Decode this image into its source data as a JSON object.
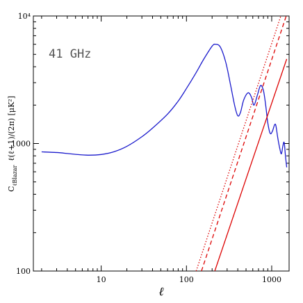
{
  "chart_data": {
    "type": "line",
    "xscale": "log",
    "yscale": "log",
    "xlim": [
      1.6,
      1600
    ],
    "ylim": [
      100,
      10000
    ],
    "x_ticks": [
      {
        "value": 10,
        "label": "10"
      },
      {
        "value": 100,
        "label": "100"
      },
      {
        "value": 1000,
        "label": "1000"
      }
    ],
    "y_ticks": [
      {
        "value": 100,
        "label": "100"
      },
      {
        "value": 1000,
        "label": "1000"
      },
      {
        "value": 10000,
        "label": "10⁴"
      }
    ],
    "xlabel": "ℓ",
    "ylabel": "C_{ℓBlazar}  ℓ(ℓ+1)/(2π) [μK²]",
    "ylabel_main": "C",
    "ylabel_sub": "ℓBlazar",
    "ylabel_rest": "ℓ(ℓ+1)/(2π)  [μK²]",
    "annotation": "41 GHz",
    "grid": false,
    "series": [
      {
        "style": "solid",
        "color": "#1a1acc",
        "x": [
          2,
          3,
          4,
          5,
          7,
          10,
          14,
          20,
          30,
          40,
          60,
          80,
          100,
          130,
          160,
          200,
          220,
          250,
          290,
          330,
          370,
          400,
          430,
          470,
          530,
          580,
          620,
          680,
          740,
          800,
          850,
          900,
          960,
          1020,
          1080,
          1120,
          1180,
          1250,
          1300,
          1350,
          1400,
          1450,
          1500
        ],
        "y": [
          860,
          850,
          835,
          822,
          810,
          820,
          860,
          950,
          1130,
          1320,
          1700,
          2150,
          2700,
          3600,
          4600,
          5800,
          6000,
          5700,
          4300,
          2850,
          1950,
          1650,
          1750,
          2200,
          2500,
          2300,
          2000,
          2400,
          2850,
          2600,
          2000,
          1450,
          1200,
          1250,
          1400,
          1380,
          1100,
          900,
          830,
          950,
          1020,
          800,
          650
        ]
      },
      {
        "style": "dotted",
        "color": "#dd0000",
        "x": [
          130,
          1280
        ],
        "y": [
          100,
          10000
        ]
      },
      {
        "style": "dashed",
        "color": "#dd0000",
        "x": [
          150,
          1480
        ],
        "y": [
          100,
          10000
        ]
      },
      {
        "style": "solid",
        "color": "#dd0000",
        "x": [
          215,
          1500
        ],
        "y": [
          100,
          4600
        ]
      }
    ]
  }
}
